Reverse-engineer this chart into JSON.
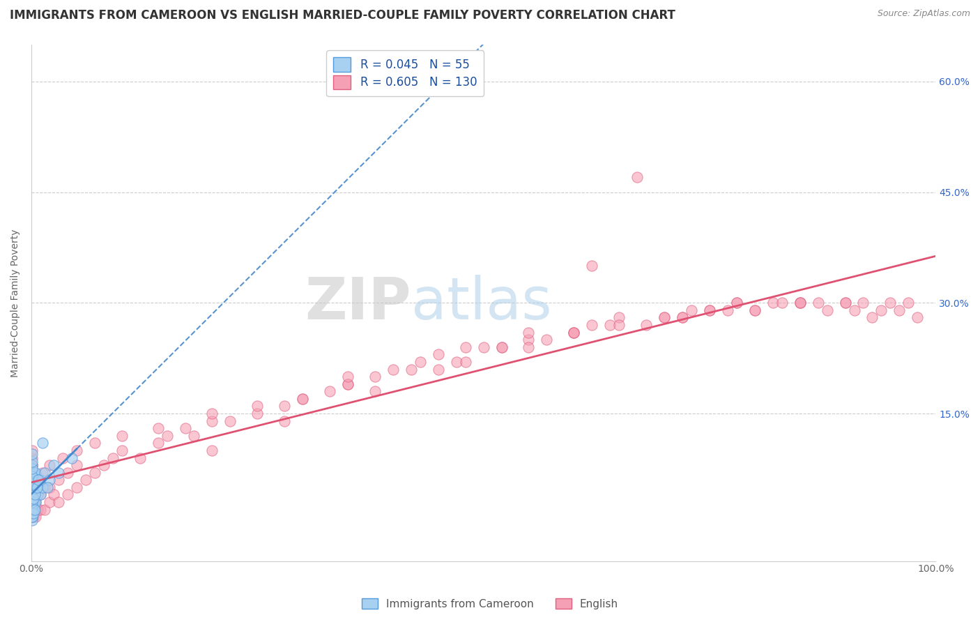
{
  "title": "IMMIGRANTS FROM CAMEROON VS ENGLISH MARRIED-COUPLE FAMILY POVERTY CORRELATION CHART",
  "source": "Source: ZipAtlas.com",
  "ylabel": "Married-Couple Family Poverty",
  "legend_label_1": "Immigrants from Cameroon",
  "legend_label_2": "English",
  "R1": 0.045,
  "N1": 55,
  "R2": 0.605,
  "N2": 130,
  "color_blue_fill": "#a8d0f0",
  "color_blue_edge": "#5599dd",
  "color_pink_fill": "#f5a0b5",
  "color_pink_edge": "#e06080",
  "color_blue_line": "#4488cc",
  "color_pink_line": "#e05070",
  "background_color": "#ffffff",
  "grid_color": "#cccccc",
  "x_lim": [
    0,
    100
  ],
  "y_lim": [
    -5,
    65
  ],
  "y_ticks": [
    0,
    15,
    30,
    45,
    60
  ],
  "y_tick_labels_right": [
    "",
    "15.0%",
    "30.0%",
    "45.0%",
    "60.0%"
  ],
  "title_fontsize": 12,
  "axis_label_fontsize": 10,
  "tick_fontsize": 10,
  "right_tick_color": "#3366cc",
  "watermark_zip": "ZIP",
  "watermark_atlas": "atlas",
  "blue_x": [
    0.05,
    0.05,
    0.05,
    0.05,
    0.05,
    0.1,
    0.1,
    0.1,
    0.1,
    0.15,
    0.15,
    0.15,
    0.2,
    0.2,
    0.2,
    0.3,
    0.3,
    0.3,
    0.3,
    0.5,
    0.5,
    0.5,
    0.7,
    0.7,
    0.8,
    1.0,
    1.0,
    1.2,
    1.5,
    2.0,
    0.05,
    0.05,
    0.05,
    0.05,
    0.05,
    0.05,
    0.05,
    0.05,
    0.05,
    0.05,
    0.05,
    0.1,
    0.1,
    0.1,
    0.2,
    0.2,
    0.4,
    0.4,
    2.5,
    3.0,
    4.5,
    0.6,
    0.8,
    1.8,
    1.2
  ],
  "blue_y": [
    2.0,
    3.0,
    4.0,
    5.0,
    6.0,
    2.0,
    4.0,
    6.0,
    8.0,
    3.0,
    5.0,
    7.0,
    2.0,
    4.0,
    6.0,
    2.0,
    3.0,
    5.0,
    7.0,
    3.0,
    5.0,
    7.0,
    4.0,
    6.0,
    5.0,
    4.0,
    6.0,
    5.0,
    7.0,
    6.0,
    0.5,
    1.0,
    1.5,
    2.5,
    3.5,
    4.5,
    5.5,
    6.5,
    7.5,
    8.5,
    9.5,
    1.0,
    2.0,
    3.0,
    1.5,
    3.5,
    2.0,
    4.0,
    8.0,
    7.0,
    9.0,
    5.0,
    6.0,
    5.0,
    11.0
  ],
  "pink_x": [
    0.05,
    0.05,
    0.05,
    0.05,
    0.05,
    0.05,
    0.05,
    0.05,
    0.05,
    0.05,
    0.1,
    0.1,
    0.1,
    0.1,
    0.1,
    0.2,
    0.2,
    0.2,
    0.3,
    0.3,
    0.5,
    0.5,
    0.5,
    0.7,
    0.7,
    1.0,
    1.0,
    1.5,
    1.5,
    2.0,
    2.0,
    2.5,
    3.0,
    3.0,
    4.0,
    4.0,
    5.0,
    5.0,
    6.0,
    7.0,
    8.0,
    9.0,
    10.0,
    12.0,
    14.0,
    15.0,
    17.0,
    18.0,
    20.0,
    22.0,
    25.0,
    28.0,
    30.0,
    33.0,
    35.0,
    38.0,
    40.0,
    43.0,
    45.0,
    47.0,
    50.0,
    52.0,
    55.0,
    57.0,
    60.0,
    62.0,
    64.0,
    65.0,
    68.0,
    70.0,
    72.0,
    73.0,
    75.0,
    77.0,
    78.0,
    80.0,
    82.0,
    83.0,
    85.0,
    87.0,
    88.0,
    90.0,
    91.0,
    92.0,
    93.0,
    94.0,
    95.0,
    96.0,
    97.0,
    98.0,
    0.3,
    0.3,
    0.4,
    0.6,
    0.8,
    1.2,
    2.0,
    3.5,
    5.0,
    7.0,
    10.0,
    14.0,
    20.0,
    25.0,
    30.0,
    35.0,
    42.0,
    48.0,
    55.0,
    60.0,
    65.0,
    70.0,
    75.0,
    80.0,
    85.0,
    90.0,
    35.0,
    48.0,
    55.0,
    62.0,
    20.0,
    28.0,
    38.0,
    45.0,
    52.0,
    60.0,
    67.0,
    72.0,
    78.0,
    85.0
  ],
  "pink_y": [
    1.0,
    2.0,
    3.0,
    4.0,
    5.0,
    6.0,
    7.0,
    8.0,
    9.0,
    10.0,
    1.0,
    2.0,
    4.0,
    6.0,
    8.0,
    1.0,
    3.0,
    5.0,
    2.0,
    4.0,
    1.0,
    3.0,
    5.0,
    2.0,
    4.0,
    2.0,
    4.0,
    2.0,
    5.0,
    3.0,
    5.0,
    4.0,
    3.0,
    6.0,
    4.0,
    7.0,
    5.0,
    8.0,
    6.0,
    7.0,
    8.0,
    9.0,
    10.0,
    9.0,
    11.0,
    12.0,
    13.0,
    12.0,
    14.0,
    14.0,
    15.0,
    16.0,
    17.0,
    18.0,
    19.0,
    20.0,
    21.0,
    22.0,
    23.0,
    22.0,
    24.0,
    24.0,
    25.0,
    25.0,
    26.0,
    27.0,
    27.0,
    28.0,
    27.0,
    28.0,
    28.0,
    29.0,
    29.0,
    29.0,
    30.0,
    29.0,
    30.0,
    30.0,
    30.0,
    30.0,
    29.0,
    30.0,
    29.0,
    30.0,
    28.0,
    29.0,
    30.0,
    29.0,
    30.0,
    28.0,
    2.0,
    4.0,
    3.0,
    5.0,
    6.0,
    7.0,
    8.0,
    9.0,
    10.0,
    11.0,
    12.0,
    13.0,
    15.0,
    16.0,
    17.0,
    19.0,
    21.0,
    22.0,
    24.0,
    26.0,
    27.0,
    28.0,
    29.0,
    29.0,
    30.0,
    30.0,
    20.0,
    24.0,
    26.0,
    35.0,
    10.0,
    14.0,
    18.0,
    21.0,
    24.0,
    26.0,
    47.0,
    28.0,
    30.0,
    30.0
  ]
}
